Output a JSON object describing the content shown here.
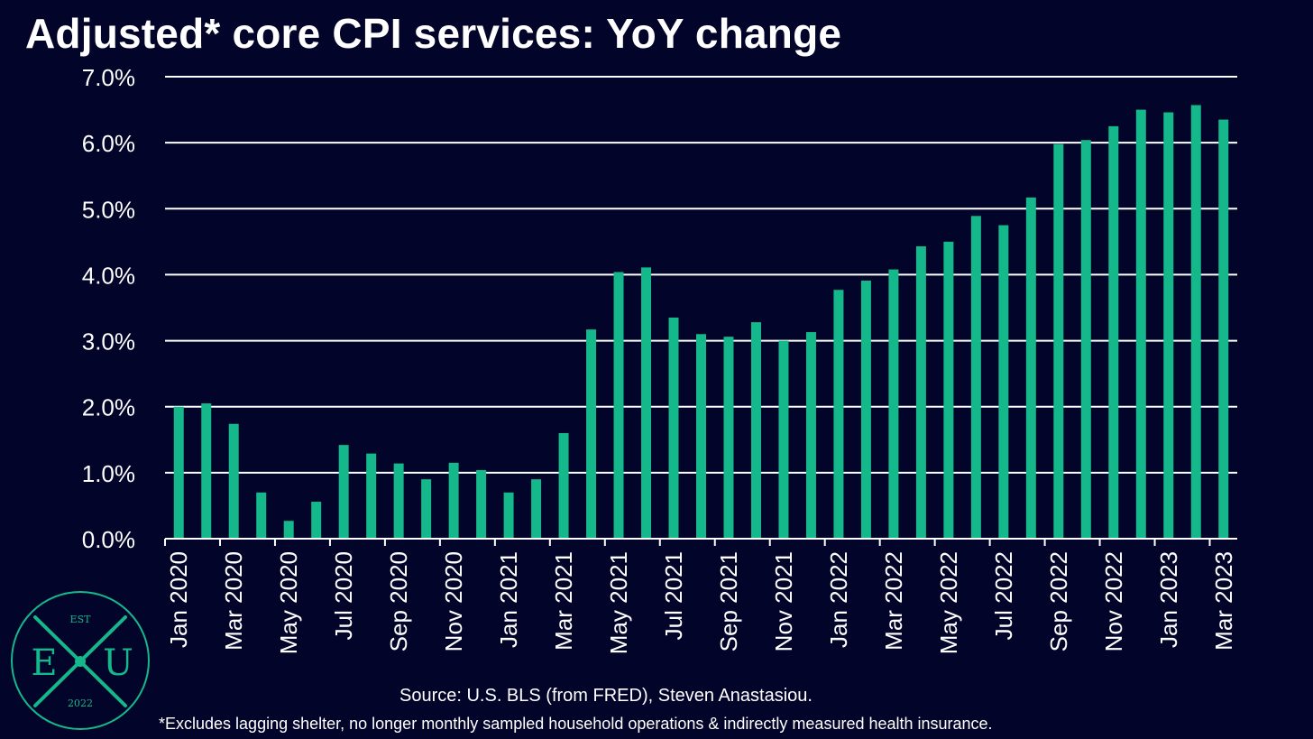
{
  "colors": {
    "background": "#02042a",
    "bar": "#14b88a",
    "grid": "#ffffff",
    "text": "#ffffff",
    "logo": "#14b88a"
  },
  "footer": {
    "source": "Source: U.S. BLS (from FRED), Steven Anastasiou.",
    "note": "*Excludes lagging shelter, no longer monthly sampled household operations & indirectly measured health insurance."
  },
  "logo": {
    "top_text": "EST",
    "left_letter": "E",
    "right_letter": "U",
    "bottom_text": "2022"
  },
  "chart_data": {
    "type": "bar",
    "title": "Adjusted* core CPI services: YoY change",
    "xlabel": "",
    "ylabel": "",
    "ylim": [
      0,
      7
    ],
    "y_ticks": [
      "0.0%",
      "1.0%",
      "2.0%",
      "3.0%",
      "4.0%",
      "5.0%",
      "6.0%",
      "7.0%"
    ],
    "grid": true,
    "legend": "none",
    "tick_labels": [
      "Jan 2020",
      "Mar 2020",
      "May 2020",
      "Jul 2020",
      "Sep 2020",
      "Nov 2020",
      "Jan 2021",
      "Mar 2021",
      "May 2021",
      "Jul 2021",
      "Sep 2021",
      "Nov 2021",
      "Jan 2022",
      "Mar 2022",
      "May 2022",
      "Jul 2022",
      "Sep 2022",
      "Nov 2022",
      "Jan 2023",
      "Mar 2023"
    ],
    "categories": [
      "Jan 2020",
      "Feb 2020",
      "Mar 2020",
      "Apr 2020",
      "May 2020",
      "Jun 2020",
      "Jul 2020",
      "Aug 2020",
      "Sep 2020",
      "Oct 2020",
      "Nov 2020",
      "Dec 2020",
      "Jan 2021",
      "Feb 2021",
      "Mar 2021",
      "Apr 2021",
      "May 2021",
      "Jun 2021",
      "Jul 2021",
      "Aug 2021",
      "Sep 2021",
      "Oct 2021",
      "Nov 2021",
      "Dec 2021",
      "Jan 2022",
      "Feb 2022",
      "Mar 2022",
      "Apr 2022",
      "May 2022",
      "Jun 2022",
      "Jul 2022",
      "Aug 2022",
      "Sep 2022",
      "Oct 2022",
      "Nov 2022",
      "Dec 2022",
      "Jan 2023",
      "Feb 2023",
      "Mar 2023"
    ],
    "values": [
      2.0,
      2.05,
      1.74,
      0.7,
      0.27,
      0.56,
      1.42,
      1.29,
      1.14,
      0.9,
      1.15,
      1.04,
      0.7,
      0.9,
      1.6,
      3.17,
      4.04,
      4.11,
      3.35,
      3.1,
      3.06,
      3.28,
      3.0,
      3.13,
      3.77,
      3.91,
      4.08,
      4.43,
      4.5,
      4.89,
      4.75,
      5.17,
      5.98,
      6.04,
      6.25,
      6.5,
      6.46,
      6.57,
      6.35
    ]
  }
}
